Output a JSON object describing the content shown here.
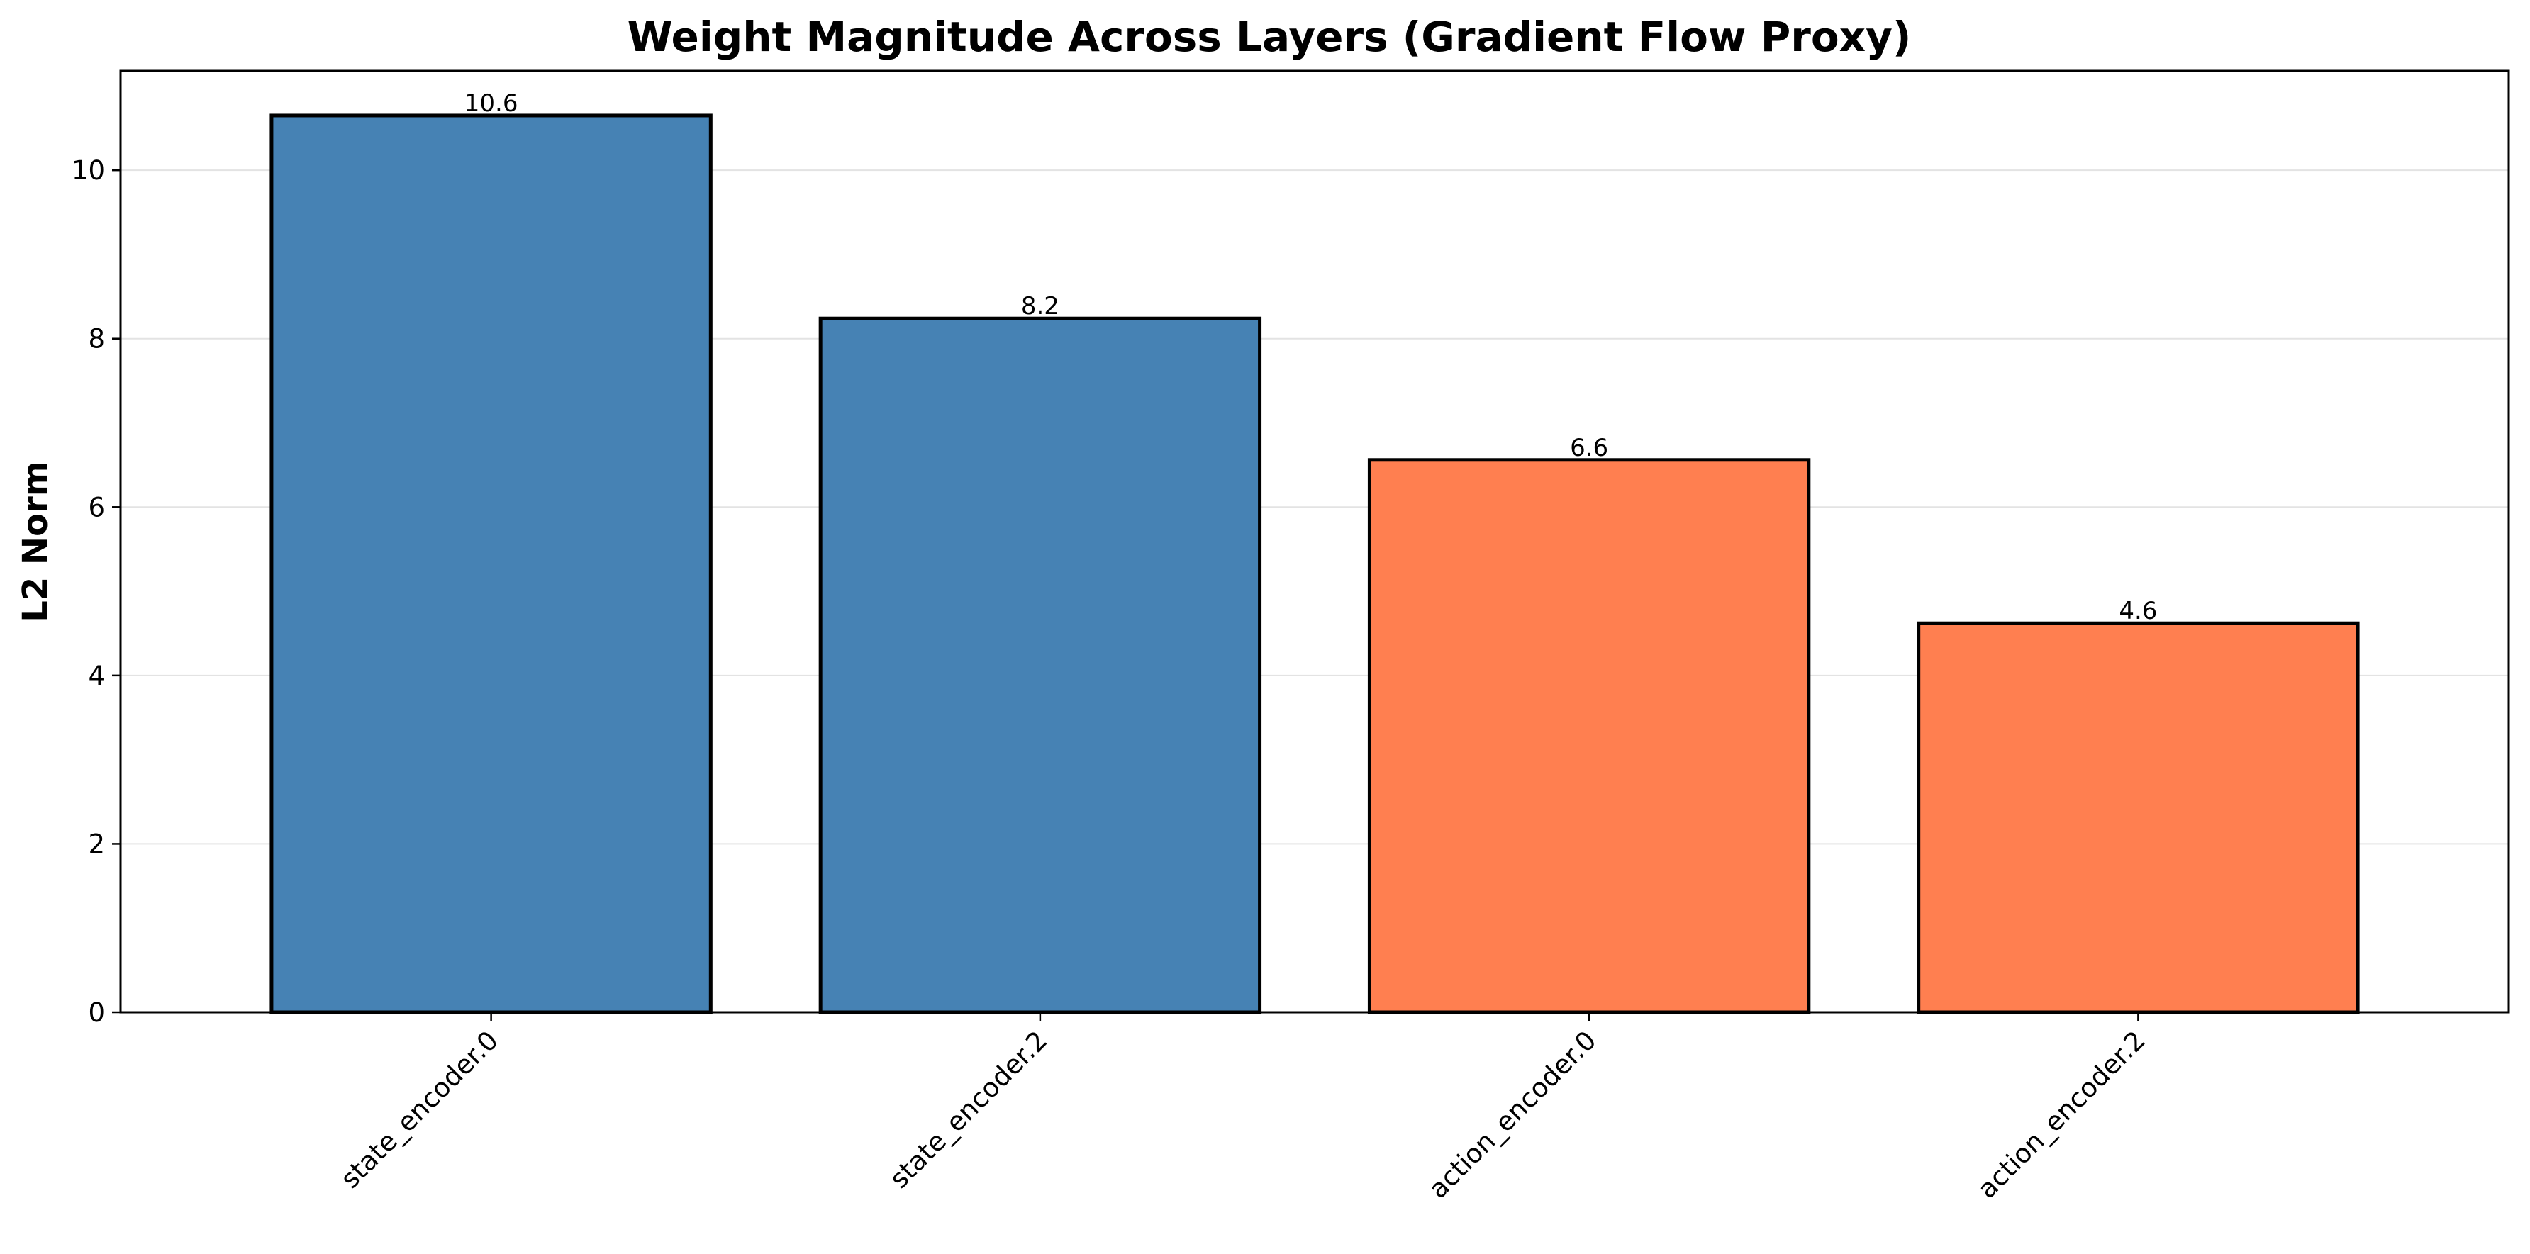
{
  "chart_data": {
    "type": "bar",
    "title": "Weight Magnitude Across Layers (Gradient Flow Proxy)",
    "xlabel": "",
    "ylabel": "L2 Norm",
    "categories": [
      "state_encoder.0",
      "state_encoder.2",
      "action_encoder.0",
      "action_encoder.2"
    ],
    "values": [
      10.65,
      8.24,
      6.56,
      4.62
    ],
    "data_labels": [
      "10.6",
      "8.2",
      "6.6",
      "4.6"
    ],
    "bar_colors": [
      "#4682b4",
      "#4682b4",
      "#ff7f50",
      "#ff7f50"
    ],
    "bar_edge_color": "#000000",
    "ylim": [
      0,
      11.18
    ],
    "yticks": [
      0,
      2,
      4,
      6,
      8,
      10
    ],
    "ytick_labels": [
      "0",
      "2",
      "4",
      "6",
      "8",
      "10"
    ],
    "grid": "y",
    "legend": "none",
    "xtick_rotation_deg": 45
  }
}
